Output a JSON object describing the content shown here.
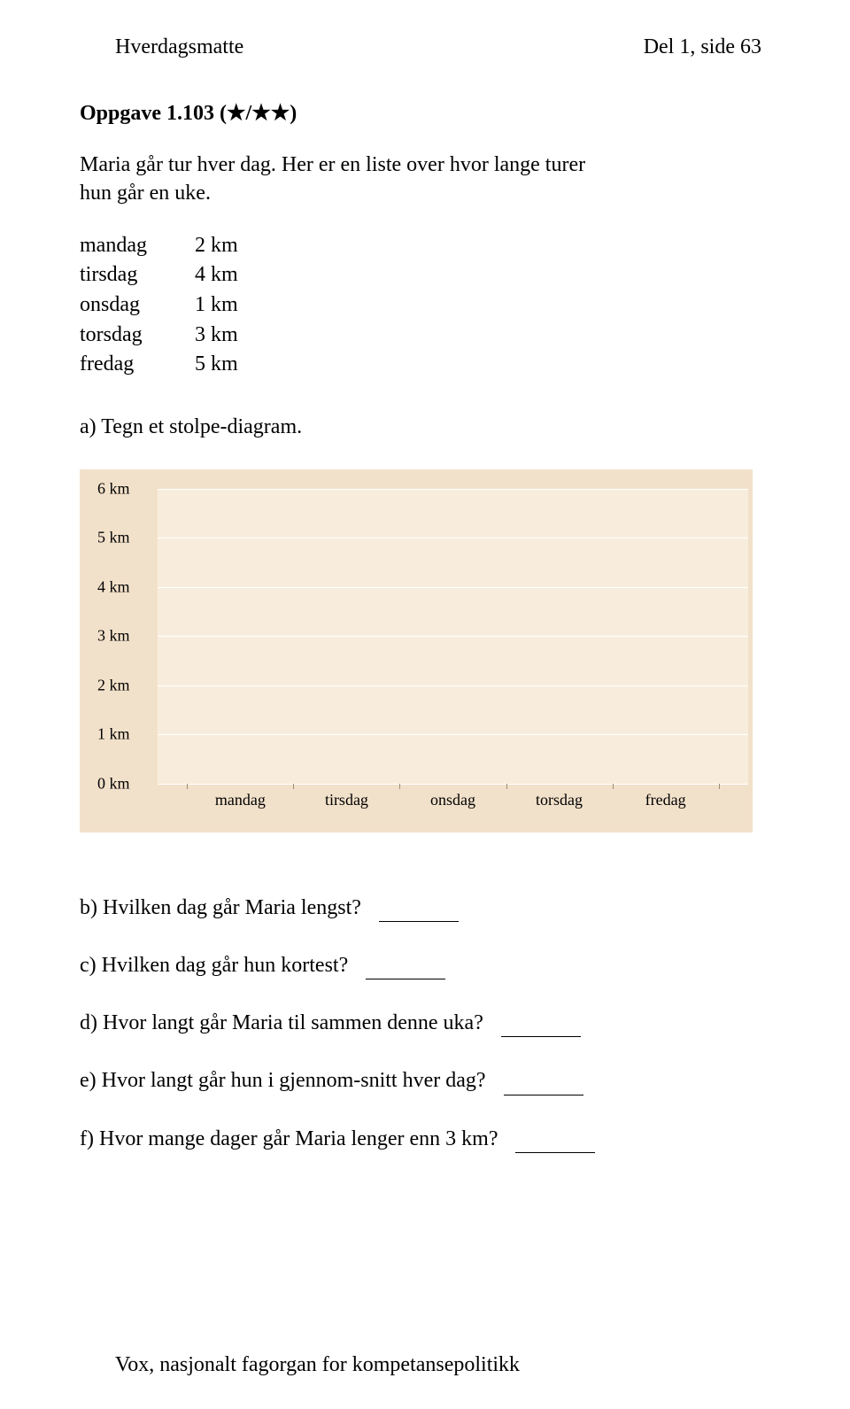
{
  "header": {
    "left": "Hverdagsmatte",
    "right": "Del 1, side 63"
  },
  "task": {
    "title": "Oppgave 1.103 (★/★★)",
    "intro_line1": "Maria går tur hver dag. Her er en liste over hvor lange turer",
    "intro_line2": "hun går en uke.",
    "data": [
      {
        "day": "mandag",
        "value": "2 km"
      },
      {
        "day": "tirsdag",
        "value": "4 km"
      },
      {
        "day": "onsdag",
        "value": "1 km"
      },
      {
        "day": "torsdag",
        "value": "3 km"
      },
      {
        "day": "fredag",
        "value": "5 km"
      }
    ],
    "sub_a": "a)  Tegn et stolpe-diagram."
  },
  "chart": {
    "type": "bar",
    "background_outer": "#f2e1ca",
    "background_inner": "#f8eddc",
    "grid_color": "#ffffff",
    "tick_color": "#9d8e76",
    "label_fontsize": 18,
    "y_labels": [
      "6 km",
      "5 km",
      "4 km",
      "3 km",
      "2 km",
      "1 km",
      "0 km"
    ],
    "y_positions_pct": [
      0,
      16.67,
      33.33,
      50,
      66.67,
      83.33,
      100
    ],
    "x_labels": [
      "mandag",
      "tirsdag",
      "onsdag",
      "torsdag",
      "fredag"
    ],
    "x_positions_pct": [
      14,
      32,
      50,
      68,
      86
    ],
    "x_tick_positions_pct": [
      5,
      23,
      41,
      59,
      77,
      95
    ]
  },
  "questions": {
    "b": "b)  Hvilken dag går Maria lengst?",
    "c": "c)  Hvilken dag går hun kortest?",
    "d": "d)  Hvor langt går Maria til sammen denne uka?",
    "e": "e)  Hvor langt går hun i gjennom-snitt hver dag?",
    "f": "f)  Hvor mange dager går Maria lenger enn 3 km?"
  },
  "footer": "Vox, nasjonalt fagorgan for kompetansepolitikk"
}
